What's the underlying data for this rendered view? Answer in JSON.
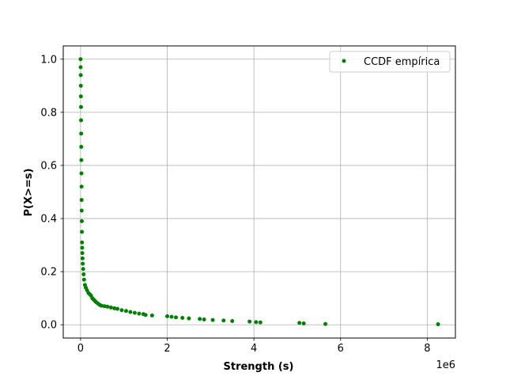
{
  "chart_data": {
    "type": "scatter",
    "title": "",
    "xlabel": "Strength (s)",
    "ylabel": "P(X>=s)",
    "x_offset_label": "1e6",
    "xlim": [
      -400000,
      8650000
    ],
    "ylim": [
      -0.05,
      1.05
    ],
    "x_ticks": [
      0,
      2000000,
      4000000,
      6000000,
      8000000
    ],
    "x_tick_labels": [
      "0",
      "2",
      "4",
      "6",
      "8"
    ],
    "y_ticks": [
      0.0,
      0.2,
      0.4,
      0.6,
      0.8,
      1.0
    ],
    "y_tick_labels": [
      "0.0",
      "0.2",
      "0.4",
      "0.6",
      "0.8",
      "1.0"
    ],
    "grid": true,
    "legend_position": "top-right",
    "series": [
      {
        "name": "CCDF empírica",
        "color": "#008000",
        "marker": "circle",
        "points": [
          [
            0,
            1.0
          ],
          [
            2000,
            0.97
          ],
          [
            4000,
            0.94
          ],
          [
            6000,
            0.9
          ],
          [
            8000,
            0.86
          ],
          [
            10000,
            0.82
          ],
          [
            12000,
            0.77
          ],
          [
            14000,
            0.72
          ],
          [
            16000,
            0.67
          ],
          [
            18000,
            0.62
          ],
          [
            20000,
            0.57
          ],
          [
            22000,
            0.52
          ],
          [
            24000,
            0.47
          ],
          [
            26000,
            0.43
          ],
          [
            28000,
            0.39
          ],
          [
            30000,
            0.35
          ],
          [
            33000,
            0.31
          ],
          [
            36000,
            0.29
          ],
          [
            40000,
            0.27
          ],
          [
            45000,
            0.25
          ],
          [
            50000,
            0.23
          ],
          [
            60000,
            0.21
          ],
          [
            70000,
            0.19
          ],
          [
            80000,
            0.17
          ],
          [
            100000,
            0.15
          ],
          [
            120000,
            0.14
          ],
          [
            150000,
            0.13
          ],
          [
            180000,
            0.12
          ],
          [
            210000,
            0.115
          ],
          [
            240000,
            0.11
          ],
          [
            270000,
            0.1
          ],
          [
            300000,
            0.095
          ],
          [
            330000,
            0.09
          ],
          [
            360000,
            0.085
          ],
          [
            400000,
            0.08
          ],
          [
            440000,
            0.075
          ],
          [
            480000,
            0.072
          ],
          [
            550000,
            0.07
          ],
          [
            620000,
            0.068
          ],
          [
            700000,
            0.065
          ],
          [
            780000,
            0.062
          ],
          [
            850000,
            0.06
          ],
          [
            950000,
            0.055
          ],
          [
            1050000,
            0.052
          ],
          [
            1150000,
            0.048
          ],
          [
            1250000,
            0.045
          ],
          [
            1350000,
            0.042
          ],
          [
            1450000,
            0.04
          ],
          [
            1500000,
            0.037
          ],
          [
            1650000,
            0.035
          ],
          [
            2000000,
            0.032
          ],
          [
            2100000,
            0.03
          ],
          [
            2200000,
            0.028
          ],
          [
            2350000,
            0.026
          ],
          [
            2500000,
            0.024
          ],
          [
            2750000,
            0.022
          ],
          [
            2850000,
            0.02
          ],
          [
            3050000,
            0.018
          ],
          [
            3300000,
            0.016
          ],
          [
            3500000,
            0.014
          ],
          [
            3900000,
            0.012
          ],
          [
            4050000,
            0.01
          ],
          [
            4150000,
            0.009
          ],
          [
            5050000,
            0.007
          ],
          [
            5150000,
            0.005
          ],
          [
            5650000,
            0.003
          ],
          [
            8250000,
            0.002
          ]
        ]
      }
    ]
  }
}
